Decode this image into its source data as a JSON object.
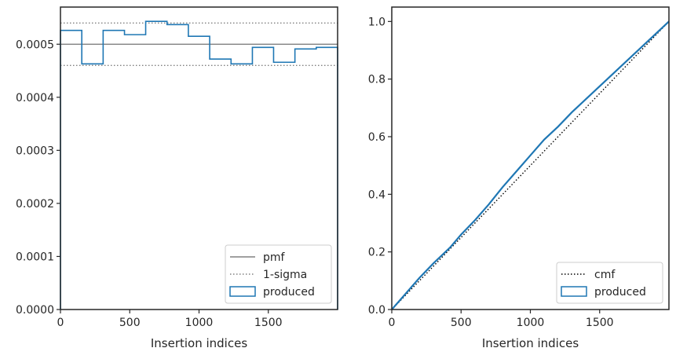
{
  "chart_data": [
    {
      "type": "histogram",
      "xlabel": "Insertion indices",
      "ylabel": "",
      "xlim": [
        0,
        2000
      ],
      "ylim": [
        0,
        0.00057
      ],
      "xticks": [
        0,
        500,
        1000,
        1500
      ],
      "yticks": [
        0,
        0.0001,
        0.0002,
        0.0003,
        0.0004,
        0.0005
      ],
      "ytick_labels": [
        "0.0000",
        "0.0001",
        "0.0002",
        "0.0003",
        "0.0004",
        "0.0005"
      ],
      "legend_position": "lower right",
      "grid": false,
      "pmf": 0.0005,
      "sigma_band": [
        0.00046,
        0.00054
      ],
      "bins": [
        {
          "x0": 0,
          "x1": 154,
          "y": 0.000526
        },
        {
          "x0": 154,
          "x1": 308,
          "y": 0.000463
        },
        {
          "x0": 308,
          "x1": 462,
          "y": 0.000526
        },
        {
          "x0": 462,
          "x1": 615,
          "y": 0.000518
        },
        {
          "x0": 615,
          "x1": 769,
          "y": 0.000543
        },
        {
          "x0": 769,
          "x1": 923,
          "y": 0.000537
        },
        {
          "x0": 923,
          "x1": 1077,
          "y": 0.000515
        },
        {
          "x0": 1077,
          "x1": 1231,
          "y": 0.000472
        },
        {
          "x0": 1231,
          "x1": 1385,
          "y": 0.000463
        },
        {
          "x0": 1385,
          "x1": 1538,
          "y": 0.000494
        },
        {
          "x0": 1538,
          "x1": 1692,
          "y": 0.000466
        },
        {
          "x0": 1692,
          "x1": 1846,
          "y": 0.000491
        },
        {
          "x0": 1846,
          "x1": 2000,
          "y": 0.000494
        }
      ],
      "legend": [
        {
          "label": "pmf",
          "style": "solid",
          "color": "#808080"
        },
        {
          "label": "1-sigma",
          "style": "dotted",
          "color": "#808080"
        },
        {
          "label": "produced",
          "style": "patch",
          "color": "#1f77b4"
        }
      ]
    },
    {
      "type": "line",
      "xlabel": "Insertion indices",
      "ylabel": "",
      "xlim": [
        0,
        2000
      ],
      "ylim": [
        0,
        1.05
      ],
      "xticks": [
        0,
        500,
        1000,
        1500
      ],
      "yticks": [
        0,
        0.2,
        0.4,
        0.6,
        0.8,
        1.0
      ],
      "ytick_labels": [
        "0.0",
        "0.2",
        "0.4",
        "0.6",
        "0.8",
        "1.0"
      ],
      "legend_position": "lower right",
      "grid": false,
      "cmf": {
        "x": [
          0,
          2000
        ],
        "y": [
          0,
          1.0
        ]
      },
      "produced": {
        "x": [
          0,
          100,
          200,
          300,
          420,
          500,
          600,
          700,
          800,
          900,
          1000,
          1100,
          1200,
          1300,
          1400,
          1500,
          1600,
          1700,
          1800,
          1900,
          2000
        ],
        "y": [
          0,
          0.055,
          0.11,
          0.16,
          0.215,
          0.26,
          0.31,
          0.365,
          0.425,
          0.48,
          0.535,
          0.59,
          0.635,
          0.685,
          0.73,
          0.775,
          0.82,
          0.865,
          0.91,
          0.955,
          1.0
        ]
      },
      "legend": [
        {
          "label": "cmf",
          "style": "dotted",
          "color": "#000000"
        },
        {
          "label": "produced",
          "style": "patch",
          "color": "#1f77b4"
        }
      ]
    }
  ],
  "colors": {
    "produced": "#1f77b4",
    "pmf": "#808080",
    "cmf": "#000000",
    "axes": "#262626"
  }
}
